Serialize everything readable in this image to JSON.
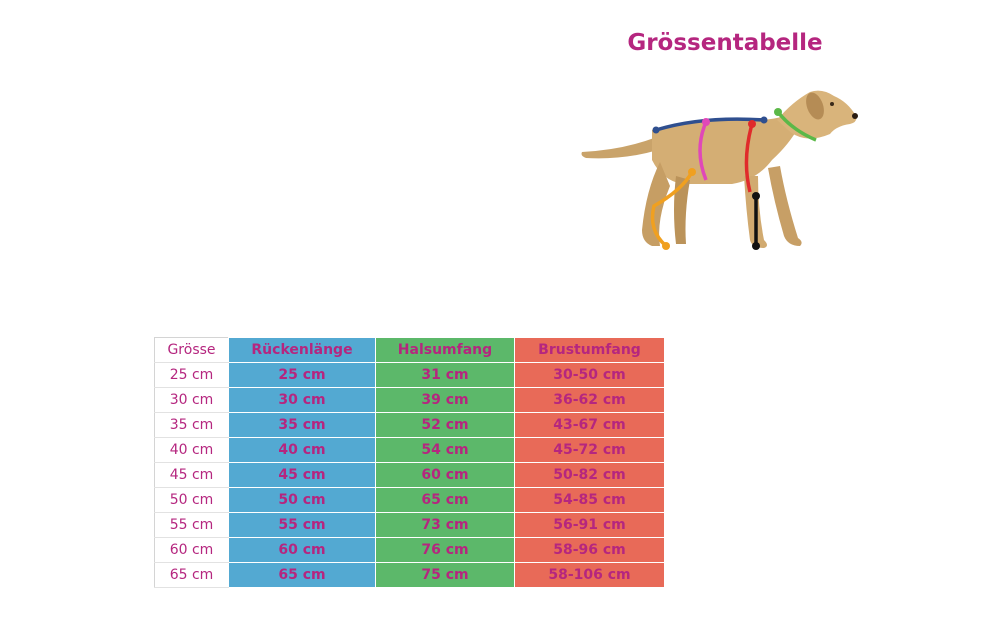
{
  "title": "Grössentabelle",
  "illustration": {
    "subject": "dog-measurement-illustration",
    "colors": {
      "back_length": "#2f4f8f",
      "neck": "#5bb848",
      "chest": "#e02b2b",
      "girth": "#e048b8",
      "leg": "#f0a020",
      "height": "#111111"
    }
  },
  "table": {
    "headers": [
      "Grösse",
      "Rückenlänge",
      "Halsumfang",
      "Brustumfang"
    ],
    "rows": [
      [
        "25 cm",
        "25 cm",
        "31 cm",
        "30-50 cm"
      ],
      [
        "30 cm",
        "30 cm",
        "39 cm",
        "36-62 cm"
      ],
      [
        "35 cm",
        "35 cm",
        "52 cm",
        "43-67 cm"
      ],
      [
        "40 cm",
        "40 cm",
        "54 cm",
        "45-72 cm"
      ],
      [
        "45 cm",
        "45 cm",
        "60 cm",
        "50-82 cm"
      ],
      [
        "50 cm",
        "50 cm",
        "65 cm",
        "54-85 cm"
      ],
      [
        "55 cm",
        "55 cm",
        "73 cm",
        "56-91 cm"
      ],
      [
        "60 cm",
        "60 cm",
        "76 cm",
        "58-96 cm"
      ],
      [
        "65 cm",
        "65 cm",
        "75 cm",
        "58-106 cm"
      ]
    ],
    "column_colors": [
      "#ffffff",
      "#53a9d2",
      "#5cb86a",
      "#e86a58"
    ],
    "text_color": "#b5267f"
  }
}
